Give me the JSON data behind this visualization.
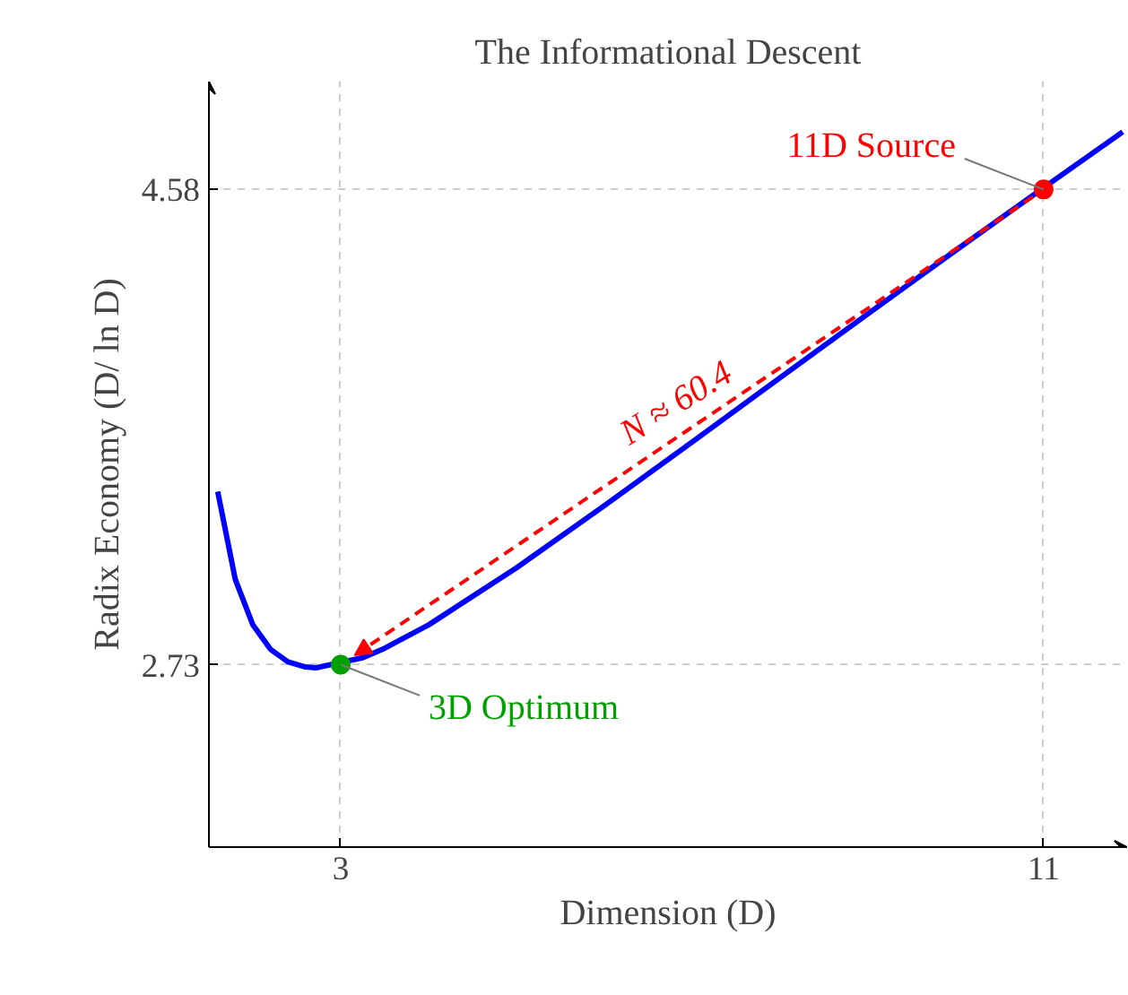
{
  "chart_data": {
    "type": "line",
    "title": "The Informational Descent",
    "xlabel": "Dimension (D)",
    "ylabel": "Radix Economy (D/ ln D)",
    "xlim": [
      1.5,
      11.95
    ],
    "ylim": [
      2.02,
      5.0
    ],
    "xticks": [
      3,
      11
    ],
    "yticks": [
      2.73,
      4.58
    ],
    "grid": true,
    "series": [
      {
        "color": "#0000ff",
        "x": [
          1.6,
          1.8,
          2.0,
          2.2,
          2.4,
          2.6,
          2.718,
          3.25,
          3.5,
          4.0,
          5.0,
          6.0,
          7.0,
          8.0,
          9.0,
          10.0,
          11.0,
          11.9
        ],
        "values": [
          3.404,
          3.062,
          2.885,
          2.79,
          2.741,
          2.721,
          2.718,
          2.757,
          2.794,
          2.885,
          3.107,
          3.349,
          3.597,
          3.847,
          4.096,
          4.343,
          4.587,
          4.804
        ]
      },
      {
        "type": "scatter",
        "color": "#00a000",
        "x": [
          3
        ],
        "values": [
          2.73
        ]
      },
      {
        "type": "scatter",
        "color": "#ff0000",
        "x": [
          11
        ],
        "values": [
          4.58
        ]
      }
    ],
    "annotations": [
      {
        "text": "11D Source",
        "x": 11,
        "y": 4.58
      },
      {
        "text": "3D Optimum",
        "x": 3,
        "y": 2.73
      },
      "N ≈ 60.4"
    ]
  }
}
